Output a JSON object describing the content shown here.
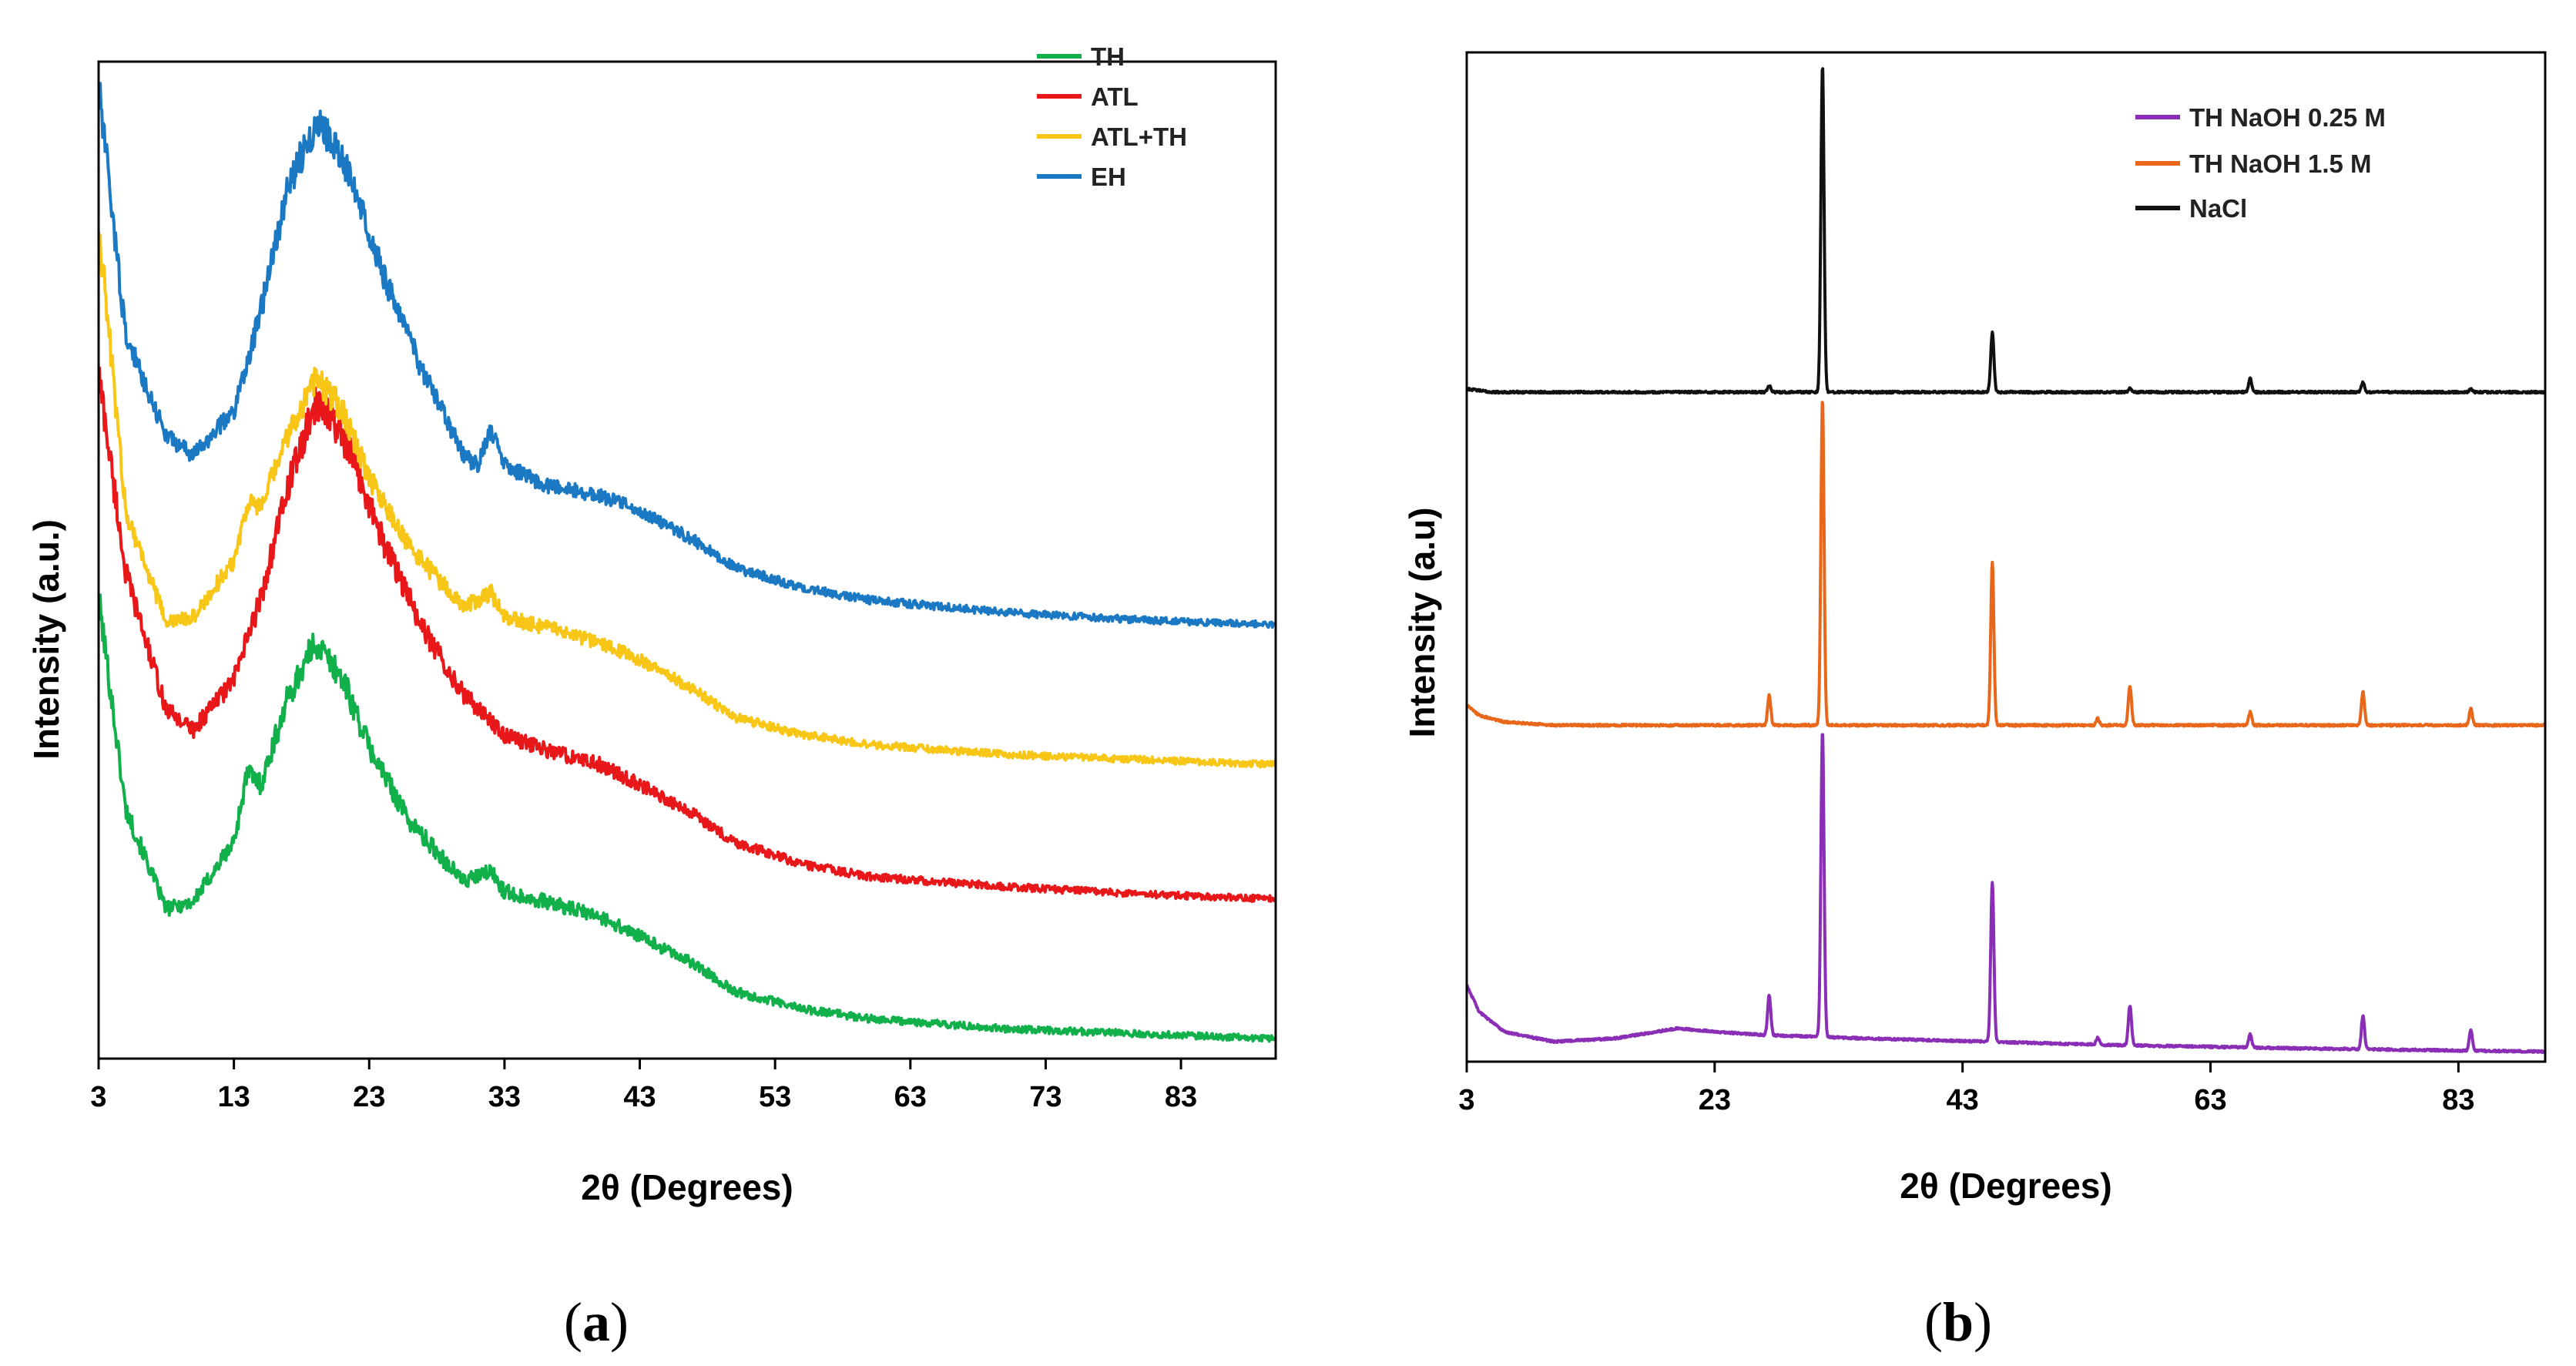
{
  "chart_data": [
    {
      "panel": "a",
      "type": "line",
      "xlabel": "2θ (Degrees)",
      "ylabel": "Intensity (a.u.)",
      "xlim": [
        3,
        90
      ],
      "xticks": [
        3,
        13,
        23,
        33,
        43,
        53,
        63,
        73,
        83
      ],
      "yticks_shown": false,
      "legend_position": "top-right",
      "series": [
        {
          "name": "TH",
          "color": "#12b04a",
          "offset": 0.0,
          "x": [
            3,
            5,
            8,
            10,
            13,
            14,
            15,
            17,
            19,
            21,
            23,
            26,
            30,
            32,
            33,
            36,
            40,
            43,
            47,
            50,
            55,
            60,
            70,
            80,
            90
          ],
          "values": [
            1.8,
            0.95,
            0.55,
            0.58,
            0.82,
            1.1,
            1.05,
            1.4,
            1.62,
            1.48,
            1.2,
            0.9,
            0.66,
            0.7,
            0.62,
            0.58,
            0.52,
            0.44,
            0.33,
            0.22,
            0.15,
            0.11,
            0.07,
            0.05,
            0.03
          ]
        },
        {
          "name": "ATL",
          "color": "#e8171a",
          "offset": 0.55,
          "x": [
            3,
            5,
            8,
            10,
            13,
            15,
            17,
            19,
            20,
            22,
            24,
            27,
            30,
            33,
            36,
            40,
            43,
            47,
            50,
            55,
            60,
            70,
            80,
            90
          ],
          "values": [
            2.15,
            1.35,
            0.8,
            0.72,
            0.92,
            1.25,
            1.7,
            2.02,
            2.0,
            1.78,
            1.48,
            1.12,
            0.86,
            0.7,
            0.64,
            0.58,
            0.5,
            0.38,
            0.27,
            0.18,
            0.13,
            0.09,
            0.06,
            0.04
          ]
        },
        {
          "name": "ATL+TH",
          "color": "#f8c617",
          "offset": 1.1,
          "x": [
            3,
            5,
            8,
            10,
            13,
            14,
            15,
            17,
            19,
            21,
            23,
            26,
            30,
            32,
            33,
            36,
            40,
            43,
            47,
            50,
            55,
            60,
            70,
            80,
            90
          ],
          "values": [
            2.2,
            1.05,
            0.6,
            0.62,
            0.85,
            1.08,
            1.06,
            1.35,
            1.58,
            1.46,
            1.18,
            0.9,
            0.66,
            0.72,
            0.62,
            0.58,
            0.52,
            0.45,
            0.33,
            0.22,
            0.15,
            0.11,
            0.07,
            0.05,
            0.03
          ]
        },
        {
          "name": "EH",
          "color": "#1b79c4",
          "offset": 1.65,
          "x": [
            3,
            5,
            8,
            10,
            13,
            15,
            17,
            19,
            20,
            22,
            24,
            27,
            30,
            31,
            32,
            33,
            36,
            40,
            43,
            47,
            50,
            55,
            60,
            70,
            80,
            90
          ],
          "values": [
            2.2,
            1.2,
            0.8,
            0.72,
            0.9,
            1.3,
            1.8,
            2.05,
            2.0,
            1.8,
            1.45,
            1.05,
            0.72,
            0.68,
            0.82,
            0.68,
            0.6,
            0.56,
            0.5,
            0.38,
            0.27,
            0.19,
            0.14,
            0.09,
            0.06,
            0.04
          ]
        }
      ]
    },
    {
      "panel": "b",
      "type": "line",
      "xlabel": "2θ (Degrees)",
      "ylabel": "Intensity (a.u)",
      "xlim": [
        3,
        90
      ],
      "xticks": [
        3,
        23,
        43,
        63,
        83
      ],
      "yticks_shown": false,
      "legend_position": "top-right",
      "series": [
        {
          "name": "TH NaOH 0.25 M",
          "color": "#8a2fb5",
          "offset": 0.0,
          "background": {
            "x": [
              3,
              4,
              6,
              10,
              15,
              20,
              23,
              27,
              35,
              45,
              55,
              70,
              90
            ],
            "values": [
              0.2,
              0.12,
              0.06,
              0.03,
              0.04,
              0.07,
              0.06,
              0.05,
              0.04,
              0.03,
              0.02,
              0.01,
              0.0
            ]
          },
          "peaks": {
            "x": [
              27.4,
              31.7,
              45.4,
              53.9,
              56.5,
              66.2,
              75.3,
              84.0
            ],
            "values": [
              0.12,
              0.92,
              0.48,
              0.02,
              0.12,
              0.04,
              0.1,
              0.06
            ]
          }
        },
        {
          "name": "TH NaOH 1.5 M",
          "color": "#e8671a",
          "offset": 0.98,
          "background": {
            "x": [
              3,
              4,
              6,
              10,
              20,
              30,
              45,
              60,
              90
            ],
            "values": [
              0.06,
              0.03,
              0.01,
              0.0,
              0.0,
              0.0,
              0.0,
              0.0,
              0.0
            ]
          },
          "peaks": {
            "x": [
              27.4,
              31.7,
              45.4,
              53.9,
              56.5,
              66.2,
              75.3,
              84.0
            ],
            "values": [
              0.09,
              0.98,
              0.49,
              0.02,
              0.12,
              0.04,
              0.1,
              0.05
            ]
          }
        },
        {
          "name": "NaCl",
          "color": "#111111",
          "offset": 1.98,
          "background": {
            "x": [
              3,
              5,
              10,
              20,
              40,
              60,
              90
            ],
            "values": [
              0.01,
              0.0,
              0.0,
              0.0,
              0.0,
              0.0,
              0.0
            ]
          },
          "peaks": {
            "x": [
              27.4,
              31.7,
              45.4,
              56.5,
              66.2,
              75.3,
              84.0
            ],
            "values": [
              0.02,
              0.98,
              0.18,
              0.01,
              0.04,
              0.03,
              0.01
            ]
          }
        }
      ]
    }
  ],
  "panel_labels": [
    "(a)",
    "(b)"
  ]
}
